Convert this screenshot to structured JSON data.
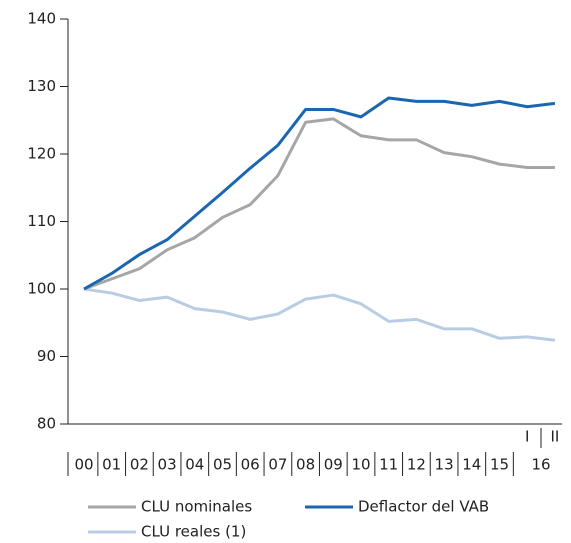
{
  "chart_data": {
    "type": "line",
    "categories": [
      "00",
      "01",
      "02",
      "03",
      "04",
      "05",
      "06",
      "07",
      "08",
      "09",
      "10",
      "11",
      "12",
      "13",
      "14",
      "15",
      "I",
      "II"
    ],
    "x_group_label": "16",
    "series": [
      {
        "name": "CLU nominales",
        "color": "#a6a6a6",
        "values": [
          100,
          101.5,
          103,
          105.8,
          107.6,
          110.6,
          112.5,
          116.8,
          124.7,
          125.2,
          122.7,
          122.1,
          122.1,
          120.2,
          119.6,
          118.5,
          118,
          118
        ]
      },
      {
        "name": "Deflactor del VAB",
        "color": "#1a66b0",
        "values": [
          100,
          102.3,
          105.1,
          107.3,
          110.8,
          114.3,
          117.9,
          121.3,
          126.6,
          126.6,
          125.5,
          128.3,
          127.8,
          127.8,
          127.2,
          127.8,
          127,
          127.5
        ]
      },
      {
        "name": "CLU reales (1)",
        "color": "#b8cde4",
        "values": [
          100,
          99.4,
          98.3,
          98.8,
          97.1,
          96.6,
          95.5,
          96.3,
          98.5,
          99.1,
          97.8,
          95.2,
          95.5,
          94.1,
          94.1,
          92.7,
          92.9,
          92.4
        ]
      }
    ],
    "ylim": [
      80,
      140
    ],
    "yticks": [
      80,
      90,
      100,
      110,
      120,
      130,
      140
    ],
    "grid": false
  }
}
